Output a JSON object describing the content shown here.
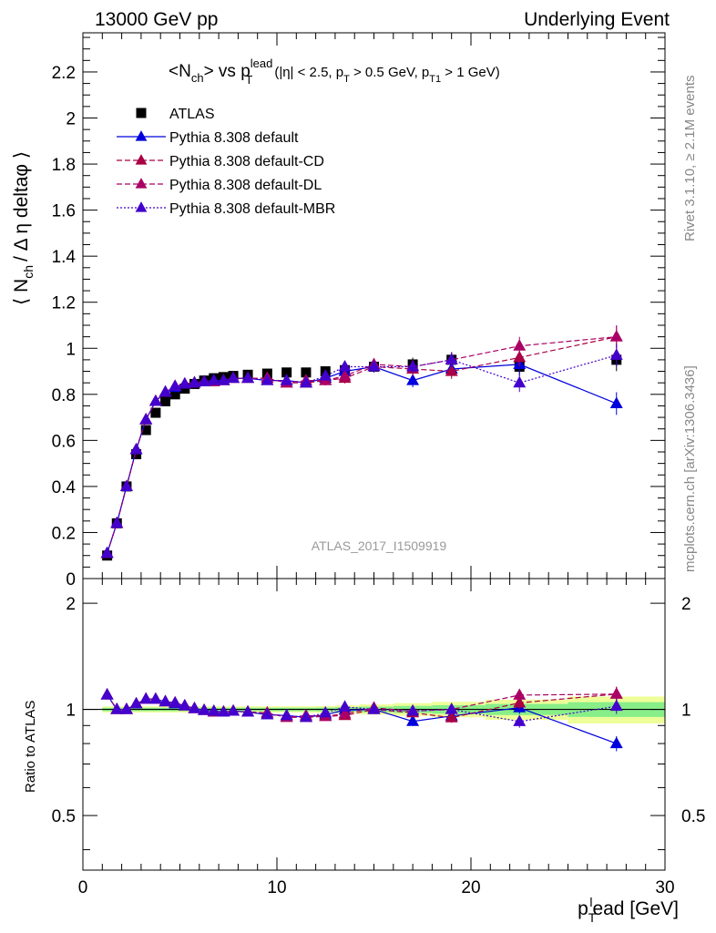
{
  "header": {
    "left": "13000 GeV pp",
    "right": "Underlying Event"
  },
  "side_labels": {
    "rivet": "Rivet 3.1.10, ≥ 2.1M events",
    "mcplots": "mcplots.cern.ch [arXiv:1306.3436]"
  },
  "watermark": "ATLAS_2017_I1509919",
  "plot_title": {
    "main": "<N",
    "main_sub": "ch",
    "vs": "> vs p",
    "vs_sup": "lead",
    "vs_sub": "T",
    "cuts_a": "(|η| < 2.5, p",
    "cuts_a_sub": "T",
    "cuts_b": " > 0.5 GeV, p",
    "cuts_b_sub": "T1",
    "cuts_c": " > 1 GeV)"
  },
  "y_label_main": {
    "a": "⟨ N",
    "sub": "ch",
    "b": "/ Δ η deltaφ ⟩"
  },
  "y_label_ratio": "Ratio to ATLAS",
  "x_label": {
    "a": "p",
    "sub": "T",
    "sup": "l",
    "b": "ead [GeV]"
  },
  "colors": {
    "atlas": "#000000",
    "default": "#0000dd",
    "cd": "#aa0044",
    "dl": "#aa0066",
    "mbr": "#4400cc",
    "band_inner": "#88ee88",
    "band_outer": "#eeff99"
  },
  "chart_data": {
    "type": "scatter",
    "xlim": [
      0,
      30
    ],
    "ylim_main": [
      0,
      2.37
    ],
    "ylim_ratio": [
      0.35,
      2.35
    ],
    "ratio_log": true,
    "x_ticks": [
      "0",
      "10",
      "20",
      "30"
    ],
    "y_ticks_main": [
      "0",
      "0.2",
      "0.4",
      "0.6",
      "0.8",
      "1",
      "1.2",
      "1.4",
      "1.6",
      "1.8",
      "2",
      "2.2"
    ],
    "y_ticks_ratio": [
      "0.5",
      "1",
      "2"
    ],
    "x": [
      1.25,
      1.75,
      2.25,
      2.75,
      3.25,
      3.75,
      4.25,
      4.75,
      5.25,
      5.75,
      6.25,
      6.75,
      7.25,
      7.75,
      8.5,
      9.5,
      10.5,
      11.5,
      12.5,
      13.5,
      15.0,
      17.0,
      19.0,
      22.5,
      27.5
    ],
    "series": [
      {
        "name": "ATLAS",
        "style": "data",
        "marker": "square",
        "values": [
          0.1,
          0.24,
          0.4,
          0.54,
          0.645,
          0.72,
          0.77,
          0.8,
          0.825,
          0.845,
          0.86,
          0.87,
          0.875,
          0.88,
          0.885,
          0.89,
          0.895,
          0.895,
          0.9,
          0.905,
          0.92,
          0.93,
          0.95,
          0.92,
          0.95
        ]
      },
      {
        "name": "Pythia 8.308 default",
        "style": "solid",
        "marker": "triangle",
        "values": [
          0.11,
          0.24,
          0.4,
          0.56,
          0.69,
          0.77,
          0.81,
          0.83,
          0.845,
          0.85,
          0.855,
          0.86,
          0.86,
          0.87,
          0.87,
          0.86,
          0.86,
          0.85,
          0.87,
          0.9,
          0.92,
          0.86,
          0.91,
          0.93,
          0.76
        ]
      },
      {
        "name": "Pythia 8.308 default-CD",
        "style": "dashed",
        "marker": "triangle",
        "values": [
          0.11,
          0.24,
          0.4,
          0.56,
          0.69,
          0.77,
          0.81,
          0.835,
          0.845,
          0.85,
          0.855,
          0.855,
          0.86,
          0.87,
          0.87,
          0.87,
          0.85,
          0.85,
          0.86,
          0.87,
          0.92,
          0.91,
          0.9,
          0.96,
          1.05
        ]
      },
      {
        "name": "Pythia 8.308 default-DL",
        "style": "dashed",
        "marker": "triangle",
        "values": [
          0.11,
          0.24,
          0.4,
          0.56,
          0.69,
          0.77,
          0.81,
          0.835,
          0.845,
          0.85,
          0.855,
          0.855,
          0.86,
          0.87,
          0.87,
          0.87,
          0.85,
          0.86,
          0.86,
          0.88,
          0.93,
          0.92,
          0.95,
          1.01,
          1.05
        ]
      },
      {
        "name": "Pythia 8.308 default-MBR",
        "style": "dotted",
        "marker": "triangle",
        "values": [
          0.11,
          0.24,
          0.4,
          0.56,
          0.69,
          0.77,
          0.81,
          0.835,
          0.845,
          0.85,
          0.855,
          0.86,
          0.86,
          0.87,
          0.87,
          0.86,
          0.86,
          0.85,
          0.88,
          0.92,
          0.92,
          0.92,
          0.95,
          0.85,
          0.97
        ]
      }
    ],
    "legend_position": "top-left"
  }
}
